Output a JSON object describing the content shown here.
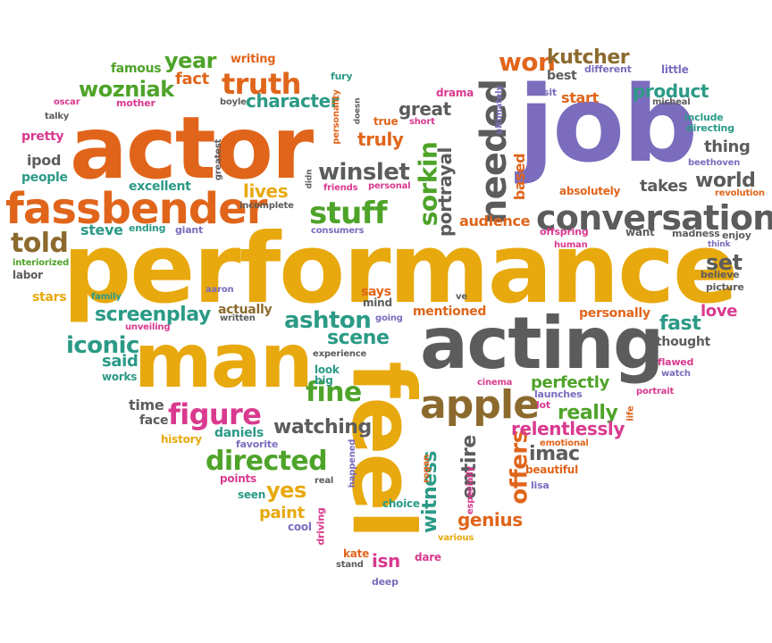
{
  "words": [
    "performance",
    "job",
    "actor",
    "man",
    "acting",
    "feel",
    "fassbender",
    "conversations",
    "apple",
    "needed",
    "truth",
    "won",
    "sorkin",
    "stuff",
    "figure",
    "directed",
    "told",
    "wozniak",
    "kutcher",
    "fine",
    "year",
    "ashton",
    "character",
    "winslet",
    "iconic",
    "screenplay",
    "product",
    "lives",
    "scene",
    "watching",
    "great",
    "really",
    "world",
    "imac",
    "offers",
    "entire",
    "witness",
    "portrayal",
    "yes",
    "truly",
    "set",
    "fast",
    "relentlessly",
    "perfectly",
    "love",
    "thing",
    "takes",
    "genius",
    "paint",
    "said",
    "time",
    "fact",
    "audience",
    "based",
    "isn",
    "steve",
    "ipod",
    "pretty",
    "people",
    "excellent",
    "famous",
    "writing",
    "drama",
    "best",
    "start",
    "mentioned",
    "personally",
    "thought",
    "says",
    "stars",
    "labor",
    "interiorized",
    "family",
    "aaron",
    "written",
    "actually",
    "unveiling",
    "going",
    "mind",
    "experience",
    "look",
    "big",
    "works",
    "face",
    "history",
    "daniels",
    "favorite",
    "points",
    "seen",
    "cool",
    "driving",
    "kate",
    "stand",
    "deep",
    "dare",
    "various",
    "especially",
    "beautiful",
    "lisa",
    "choice",
    "happened",
    "rogan",
    "real",
    "launches",
    "lot",
    "emotional",
    "cinema",
    "portrait",
    "life",
    "watch",
    "flawed",
    "picture",
    "believe",
    "think",
    "enjoy",
    "madness",
    "human",
    "want",
    "offspring",
    "absolutely",
    "revolution",
    "beethoven",
    "directing",
    "include",
    "micheal",
    "little",
    "different",
    "ultimately",
    "sit",
    "short",
    "true",
    "personal",
    "friends",
    "consumers",
    "didn",
    "incomplete",
    "greatest",
    "giant",
    "ending",
    "boyle",
    "personality",
    "doesn",
    "fury",
    "mother",
    "talky",
    "oscar",
    "ve"
  ]
}
